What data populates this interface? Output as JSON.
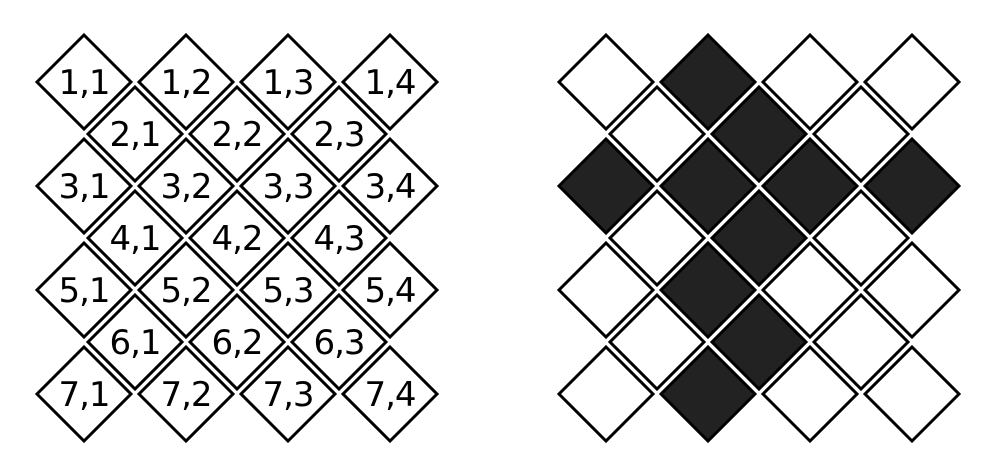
{
  "colors": {
    "background": "#ffffff",
    "outline": "#000000",
    "filled": "#222222",
    "empty": "#ffffff"
  },
  "labeled_grid": {
    "rows": [
      [
        "1,1",
        "1,2",
        "1,3",
        "1,4"
      ],
      [
        "2,1",
        "2,2",
        "2,3"
      ],
      [
        "3,1",
        "3,2",
        "3,3",
        "3,4"
      ],
      [
        "4,1",
        "4,2",
        "4,3"
      ],
      [
        "5,1",
        "5,2",
        "5,3",
        "5,4"
      ],
      [
        "6,1",
        "6,2",
        "6,3"
      ],
      [
        "7,1",
        "7,2",
        "7,3",
        "7,4"
      ]
    ]
  },
  "pattern_grid": {
    "rows": [
      [
        false,
        true,
        false,
        false
      ],
      [
        false,
        true,
        false
      ],
      [
        true,
        true,
        true,
        true
      ],
      [
        false,
        true,
        false
      ],
      [
        false,
        true,
        false,
        false
      ],
      [
        false,
        true,
        false
      ],
      [
        false,
        true,
        false,
        false
      ]
    ]
  }
}
